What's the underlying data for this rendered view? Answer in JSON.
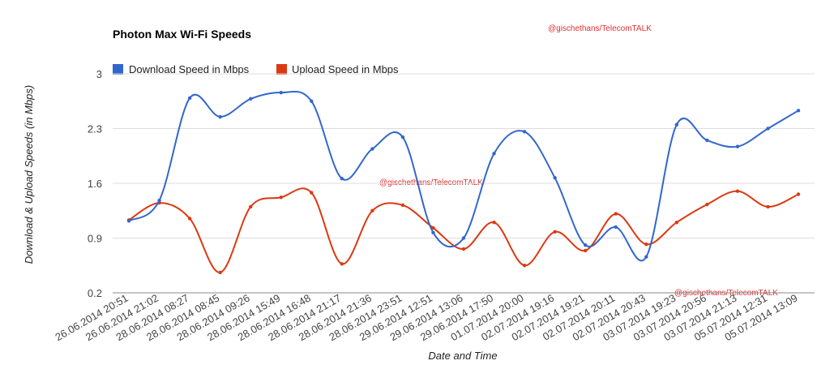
{
  "watermarks": [
    "@gischethans/TelecomTALK",
    "@gischethans/TelecomTALK",
    "@gischethans/TelecomTALK"
  ],
  "chart_data": {
    "type": "line",
    "title": "Photon Max Wi-Fi Speeds",
    "xlabel": "Date and Time",
    "ylabel": "Download & Upload Speeds (in Mbps)",
    "ylim": [
      0.2,
      3
    ],
    "yticks": [
      "3",
      "2.3",
      "1.6",
      "0.9",
      "0.2"
    ],
    "ytick_values": [
      3,
      2.3,
      1.6,
      0.9,
      0.2
    ],
    "grid": true,
    "legend_position": "top-left",
    "categories": [
      "26.06.2014 20:51",
      "26.06.2014 21:02",
      "28.06.2014 08:27",
      "28.06.2014 08:45",
      "28.06.2014 09:26",
      "28.06.2014 15:49",
      "28.06.2014 16:48",
      "28.06.2014 21:17",
      "28.06.2014 21:36",
      "28.06.2014 23:51",
      "29.06.2014 12:51",
      "29.06.2014 13:06",
      "29.06.2014 17:50",
      "01.07.2014 20:00",
      "02.07.2014 19:16",
      "02.07.2014 19:21",
      "02.07.2014 20:11",
      "02.07.2014 20:43",
      "03.07.2014 19:23",
      "03.07.2014 20:56",
      "03.07.2014 21:13",
      "05.07.2014 12:31",
      "05.07.2014 13:09"
    ],
    "series": [
      {
        "name": "Download Speed in Mbps",
        "color": "#3366cc",
        "values": [
          1.12,
          1.38,
          2.69,
          2.45,
          2.68,
          2.76,
          2.65,
          1.66,
          2.04,
          2.19,
          0.97,
          0.9,
          1.98,
          2.26,
          1.67,
          0.81,
          1.04,
          0.66,
          2.35,
          2.15,
          2.07,
          2.3,
          2.53
        ]
      },
      {
        "name": "Upload Speed in Mbps",
        "color": "#dc3912",
        "values": [
          1.13,
          1.35,
          1.15,
          0.46,
          1.3,
          1.42,
          1.48,
          0.57,
          1.25,
          1.32,
          1.03,
          0.76,
          1.1,
          0.55,
          0.98,
          0.74,
          1.21,
          0.82,
          1.1,
          1.33,
          1.5,
          1.3,
          1.46
        ]
      }
    ]
  }
}
